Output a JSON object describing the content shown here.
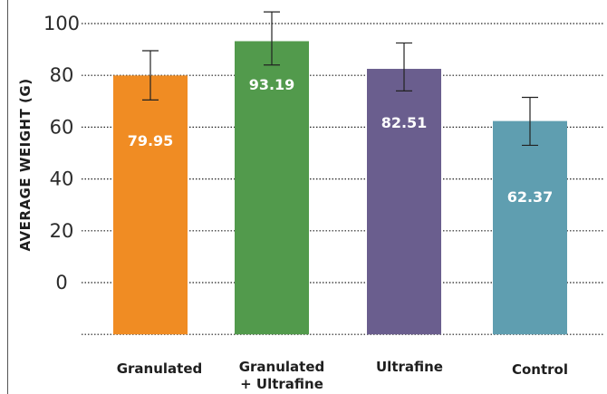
{
  "chart_data": {
    "type": "bar",
    "title": "",
    "xlabel": "",
    "ylabel": "AVERAGE WEIGHT (G)",
    "ylim": [
      -20,
      105
    ],
    "yticks": [
      100,
      80,
      60,
      40,
      20,
      0
    ],
    "grid": "horizontal-dotted",
    "legend": "none",
    "categories": [
      "Granulated",
      "Granulated\n+ Ultrafine",
      "Ultrafine",
      "Control"
    ],
    "values": [
      79.95,
      93.19,
      82.51,
      62.37
    ],
    "value_labels": [
      "79.95",
      "93.19",
      "82.51",
      "62.37"
    ],
    "error_bars": [
      {
        "low": 70.5,
        "high": 89.5
      },
      {
        "low": 84.0,
        "high": 104.5
      },
      {
        "low": 74.0,
        "high": 92.5
      },
      {
        "low": 53.0,
        "high": 71.5
      }
    ],
    "colors": [
      "#F08C23",
      "#529A4C",
      "#6A5E8E",
      "#5F9EB0"
    ]
  }
}
